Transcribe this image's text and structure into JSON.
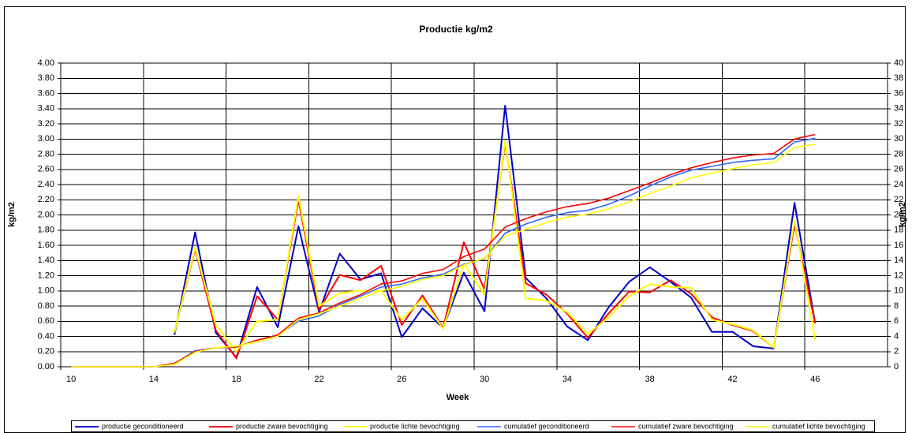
{
  "chart_data": {
    "type": "line",
    "title": "Productie kg/m2",
    "x_label": "Week",
    "y_label": "kg/m2",
    "y2_label": "kg/m2",
    "categories": [
      "10",
      null,
      null,
      null,
      "14",
      null,
      null,
      null,
      "18",
      null,
      null,
      null,
      "22",
      null,
      null,
      null,
      "26",
      null,
      null,
      null,
      "30",
      null,
      null,
      null,
      "34",
      null,
      null,
      null,
      "38",
      null,
      null,
      null,
      "42",
      null,
      null,
      null,
      "46",
      null,
      null,
      null
    ],
    "ylim": [
      0,
      4
    ],
    "yticks": [
      {
        "value": 0,
        "label": "0.00"
      },
      {
        "value": 0.2,
        "label": "0.20"
      },
      {
        "value": 0.4,
        "label": "0.40"
      },
      {
        "value": 0.6,
        "label": "0.60"
      },
      {
        "value": 0.8,
        "label": "0.80"
      },
      {
        "value": 1,
        "label": "1.00"
      },
      {
        "value": 1.2,
        "label": "1.20"
      },
      {
        "value": 1.4,
        "label": "1.40"
      },
      {
        "value": 1.6,
        "label": "1.60"
      },
      {
        "value": 1.8,
        "label": "1.80"
      },
      {
        "value": 2,
        "label": "2.00"
      },
      {
        "value": 2.2,
        "label": "2.20"
      },
      {
        "value": 2.4,
        "label": "2.40"
      },
      {
        "value": 2.6,
        "label": "2.60"
      },
      {
        "value": 2.8,
        "label": "2.80"
      },
      {
        "value": 3,
        "label": "3.00"
      },
      {
        "value": 3.2,
        "label": "3.20"
      },
      {
        "value": 3.4,
        "label": "3.40"
      },
      {
        "value": 3.6,
        "label": "3.60"
      },
      {
        "value": 3.8,
        "label": "3.80"
      },
      {
        "value": 4,
        "label": "4.00"
      }
    ],
    "y2lim": [
      0,
      40
    ],
    "y2ticks": [
      0,
      2,
      4,
      6,
      8,
      10,
      12,
      14,
      16,
      18,
      20,
      22,
      24,
      26,
      28,
      30,
      32,
      34,
      36,
      38,
      40
    ],
    "grid": true,
    "legend": "bottom",
    "series": [
      {
        "name": "productie geconditioneerd",
        "color": "#0000cc",
        "values": [
          null,
          null,
          null,
          null,
          null,
          0.42,
          1.77,
          0.45,
          0.12,
          1.05,
          0.52,
          1.85,
          0.72,
          1.49,
          1.15,
          1.23,
          0.39,
          0.77,
          0.51,
          1.24,
          0.73,
          3.44,
          1.17,
          0.9,
          0.53,
          0.35,
          0.78,
          1.12,
          1.31,
          1.12,
          0.91,
          0.46,
          0.46,
          0.27,
          0.24,
          2.16,
          0.57,
          null,
          null,
          null
        ]
      },
      {
        "name": "productie zware bevochtiging",
        "color": "#ff0000",
        "values": [
          null,
          null,
          null,
          null,
          null,
          0.45,
          1.55,
          0.48,
          0.11,
          0.93,
          0.62,
          2.2,
          0.75,
          1.21,
          1.14,
          1.33,
          0.55,
          0.94,
          0.51,
          1.64,
          1.02,
          2.95,
          1.1,
          0.95,
          0.7,
          0.38,
          0.7,
          0.99,
          0.98,
          1.14,
          0.96,
          0.65,
          0.55,
          0.47,
          0.25,
          1.88,
          0.57,
          null,
          null,
          null
        ]
      },
      {
        "name": "productie lichte bevochtiging",
        "color": "#ffff00",
        "values": [
          null,
          null,
          null,
          null,
          null,
          0.45,
          1.57,
          0.55,
          0.2,
          0.6,
          0.62,
          2.25,
          0.8,
          0.97,
          1.0,
          1.0,
          0.62,
          0.9,
          0.5,
          1.36,
          0.95,
          2.98,
          0.9,
          0.87,
          0.72,
          0.43,
          0.65,
          0.93,
          1.09,
          1.05,
          1.04,
          0.62,
          0.56,
          0.48,
          0.25,
          1.93,
          0.35,
          null,
          null,
          null
        ]
      },
      {
        "name": "cumulatief geconditioneerd",
        "color": "#3366ff",
        "axis": "y2",
        "values": [
          0,
          0,
          0,
          0,
          0,
          0.4,
          2.1,
          2.5,
          2.6,
          3.5,
          4.1,
          6.0,
          6.7,
          8.2,
          9.3,
          10.5,
          10.9,
          11.7,
          12.2,
          13.5,
          14.2,
          17.6,
          18.8,
          19.7,
          20.3,
          20.6,
          21.4,
          22.5,
          23.8,
          25.0,
          25.9,
          26.4,
          26.9,
          27.2,
          27.4,
          29.6,
          30.1,
          null,
          null,
          null
        ]
      },
      {
        "name": "cumulatief zware bevochtiging",
        "color": "#ff0000",
        "axis": "y2",
        "values": [
          0,
          0,
          0,
          0,
          0,
          0.45,
          2.0,
          2.5,
          2.6,
          3.5,
          4.2,
          6.4,
          7.1,
          8.4,
          9.5,
          10.9,
          11.3,
          12.3,
          12.8,
          14.5,
          15.5,
          18.4,
          19.5,
          20.4,
          21.1,
          21.5,
          22.2,
          23.2,
          24.2,
          25.3,
          26.2,
          26.9,
          27.5,
          27.9,
          28.1,
          30.0,
          30.6,
          null,
          null,
          null
        ]
      },
      {
        "name": "cumulatief lichte bevochtiging",
        "color": "#ffff00",
        "axis": "y2",
        "values": [
          0,
          0,
          0,
          0,
          0,
          0.3,
          1.9,
          2.5,
          2.7,
          3.3,
          4.0,
          6.2,
          7.0,
          8.0,
          9.0,
          10.0,
          10.6,
          11.5,
          12.0,
          13.4,
          14.3,
          17.2,
          18.1,
          19.0,
          19.7,
          20.1,
          20.8,
          21.7,
          22.8,
          23.8,
          24.9,
          25.5,
          26.1,
          26.6,
          26.9,
          28.9,
          29.3,
          null,
          null,
          null
        ]
      }
    ]
  }
}
